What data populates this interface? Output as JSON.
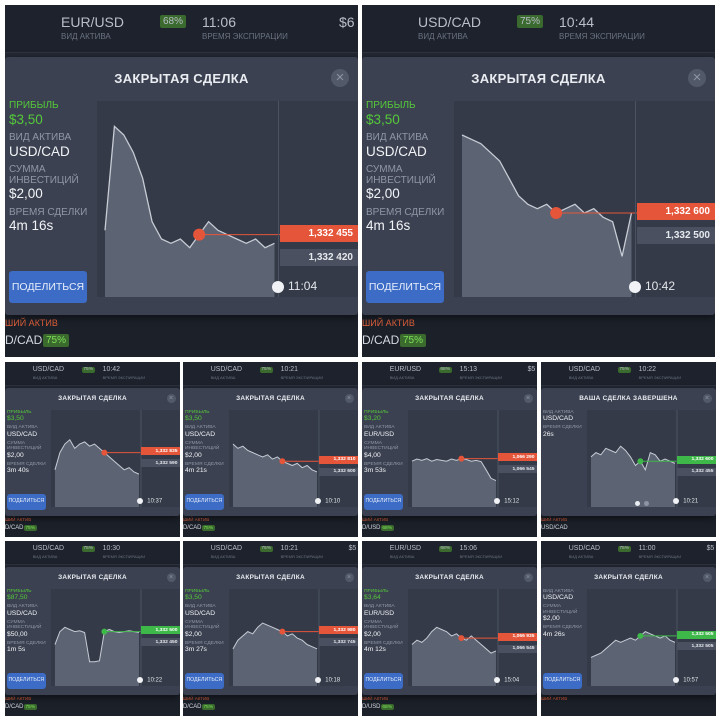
{
  "labels": {
    "asset_type": "ВИД АКТИВА",
    "expiry_time": "ВРЕМЯ ЭКСПИРАЦИИ",
    "profit": "ПРИБЫЛЬ",
    "investment": "СУММА ИНВЕСТИЦИЙ",
    "deal_time": "ВРЕМЯ СДЕЛКИ",
    "share": "ПОДЕЛИТЬСЯ",
    "hot_asset": "ШИЙ АКТИВ"
  },
  "tiles": [
    {
      "top_asset": "EUR/USD",
      "top_pct": "68%",
      "top_time": "11:06",
      "top_extra": "$6",
      "title": "ЗАКРЫТАЯ СДЕЛКА",
      "profit": "$3,50",
      "asset": "USD/CAD",
      "investment": "$2,00",
      "duration": "4m 16s",
      "price_open": "1,332 455",
      "price_close": "1,332 420",
      "tag_color": "red",
      "end_time": "11:04",
      "bottom_asset": "D/CAD",
      "bottom_pct": "75%",
      "chart_data": {
        "type": "line",
        "values": [
          400,
          1600,
          1500,
          1300,
          1000,
          500,
          300,
          250,
          300,
          200,
          350,
          500,
          400,
          350,
          300,
          250,
          300,
          200,
          250
        ]
      }
    },
    {
      "top_asset": "USD/CAD",
      "top_pct": "75%",
      "top_time": "10:44",
      "top_extra": "",
      "title": "ЗАКРЫТАЯ СДЕЛКА",
      "profit": "$3,50",
      "asset": "USD/CAD",
      "investment": "$2,00",
      "duration": "4m 16s",
      "price_open": "1,332 600",
      "price_close": "1,332 500",
      "tag_color": "red",
      "end_time": "10:42",
      "bottom_asset": "D/CAD",
      "bottom_pct": "75%",
      "chart_data": {
        "type": "line",
        "values": [
          1500,
          1450,
          1400,
          1300,
          1200,
          1000,
          800,
          700,
          650,
          700,
          600,
          650,
          700,
          600,
          650,
          550,
          500,
          100,
          600
        ]
      }
    },
    {
      "top_asset": "USD/CAD",
      "top_pct": "75%",
      "top_time": "10:42",
      "top_extra": "",
      "title": "ЗАКРЫТАЯ СДЕЛКА",
      "profit": "$3,50",
      "asset": "USD/CAD",
      "investment": "$2,00",
      "duration": "3m 40s",
      "price_open": "1,332 835",
      "price_close": "1,332 590",
      "tag_color": "red",
      "end_time": "10:37",
      "bottom_asset": "D/CAD",
      "bottom_pct": "75%",
      "chart_data": {
        "type": "line",
        "values": [
          500,
          900,
          1100,
          1200,
          1000,
          1100,
          1150,
          1050,
          1100,
          1000,
          900,
          800,
          700,
          600,
          500,
          550,
          450,
          400
        ]
      }
    },
    {
      "top_asset": "USD/CAD",
      "top_pct": "75%",
      "top_time": "10:21",
      "top_extra": "",
      "title": "ЗАКРЫТАЯ СДЕЛКА",
      "profit": "$3,50",
      "asset": "USD/CAD",
      "investment": "$2,00",
      "duration": "4m 21s",
      "price_open": "1,332 810",
      "price_close": "1,332 600",
      "tag_color": "red",
      "end_time": "10:10",
      "bottom_asset": "D/CAD",
      "bottom_pct": "75%",
      "chart_data": {
        "type": "line",
        "values": [
          1100,
          1000,
          1050,
          950,
          900,
          850,
          800,
          850,
          750,
          800,
          700,
          650,
          600,
          650,
          550,
          600,
          500,
          450
        ]
      }
    },
    {
      "top_asset": "EUR/USD",
      "top_pct": "68%",
      "top_time": "15:13",
      "top_extra": "$5",
      "title": "ЗАКРЫТАЯ СДЕЛКА",
      "profit": "$3,20",
      "asset": "EUR/USD",
      "investment": "$4,00",
      "duration": "3m 53s",
      "price_open": "1,066 290",
      "price_close": "1,066 545",
      "tag_color": "red",
      "end_time": "15:12",
      "bottom_asset": "D/USD",
      "bottom_pct": "68%",
      "chart_data": {
        "type": "line",
        "values": [
          700,
          750,
          720,
          760,
          700,
          740,
          720,
          700,
          750,
          720,
          760,
          740,
          700,
          720,
          690,
          500,
          300,
          250
        ]
      }
    },
    {
      "top_asset": "USD/CAD",
      "top_pct": "75%",
      "top_time": "10:22",
      "top_extra": "",
      "title": "ВАША СДЕЛКА ЗАВЕРШЕНА",
      "profit": "",
      "asset": "USD/CAD",
      "investment": "",
      "duration": "26s",
      "price_open": "1,332 600",
      "price_close": "1,332 455",
      "tag_color": "green",
      "end_time": "10:21",
      "bottom_asset": "USD/CAD",
      "bottom_pct": "",
      "chart_data": {
        "type": "line",
        "values": [
          800,
          900,
          850,
          1000,
          950,
          900,
          1050,
          950,
          800,
          600,
          700,
          500,
          900,
          850,
          700,
          750,
          700,
          650
        ]
      }
    },
    {
      "top_asset": "USD/CAD",
      "top_pct": "75%",
      "top_time": "10:30",
      "top_extra": "",
      "title": "ЗАКРЫТАЯ СДЕЛКА",
      "profit": "$87,50",
      "asset": "USD/CAD",
      "investment": "$50,00",
      "duration": "1m 5s",
      "price_open": "1,332 500",
      "price_close": "1,332 450",
      "tag_color": "green",
      "end_time": "10:22",
      "bottom_asset": "D/CAD",
      "bottom_pct": "75%",
      "chart_data": {
        "type": "line",
        "values": [
          600,
          900,
          1000,
          950,
          900,
          920,
          880,
          200,
          200,
          220,
          900,
          950,
          900,
          880,
          900,
          920,
          900,
          880
        ]
      }
    },
    {
      "top_asset": "USD/CAD",
      "top_pct": "75%",
      "top_time": "10:21",
      "top_extra": "$5",
      "title": "ЗАКРЫТАЯ СДЕЛКА",
      "profit": "$3,50",
      "asset": "USD/CAD",
      "investment": "$2,00",
      "duration": "3m 27s",
      "price_open": "1,332 980",
      "price_close": "1,332 745",
      "tag_color": "red",
      "end_time": "10:18",
      "bottom_asset": "D/CAD",
      "bottom_pct": "75%",
      "chart_data": {
        "type": "line",
        "values": [
          500,
          700,
          800,
          900,
          850,
          1000,
          1100,
          1050,
          1000,
          950,
          900,
          800,
          850,
          750,
          700,
          600,
          550,
          500
        ]
      }
    },
    {
      "top_asset": "EUR/USD",
      "top_pct": "68%",
      "top_time": "15:06",
      "top_extra": "",
      "title": "ЗАКРЫТАЯ СДЕЛКА",
      "profit": "$3,64",
      "asset": "EUR/USD",
      "investment": "$2,00",
      "duration": "4m 12s",
      "price_open": "1,066 935",
      "price_close": "1,066 545",
      "tag_color": "red",
      "end_time": "15:04",
      "bottom_asset": "D/USD",
      "bottom_pct": "68%",
      "chart_data": {
        "type": "line",
        "values": [
          600,
          700,
          650,
          750,
          900,
          1000,
          950,
          900,
          800,
          850,
          750,
          700,
          800,
          700,
          600,
          500,
          400,
          450
        ]
      }
    },
    {
      "top_asset": "USD/CAD",
      "top_pct": "75%",
      "top_time": "11:00",
      "top_extra": "$5",
      "title": "ЗАКРЫТАЯ СДЕЛКА",
      "profit": "",
      "asset": "USD/CAD",
      "investment": "$2,00",
      "duration": "4m 26s",
      "price_open": "1,332 505",
      "price_close": "1,332 505",
      "tag_color": "green",
      "end_time": "10:57",
      "bottom_asset": "",
      "bottom_pct": "",
      "chart_data": {
        "type": "line",
        "values": [
          300,
          350,
          400,
          500,
          600,
          700,
          650,
          700,
          750,
          700,
          800,
          900,
          850,
          800,
          750,
          800,
          700,
          650
        ]
      }
    }
  ]
}
